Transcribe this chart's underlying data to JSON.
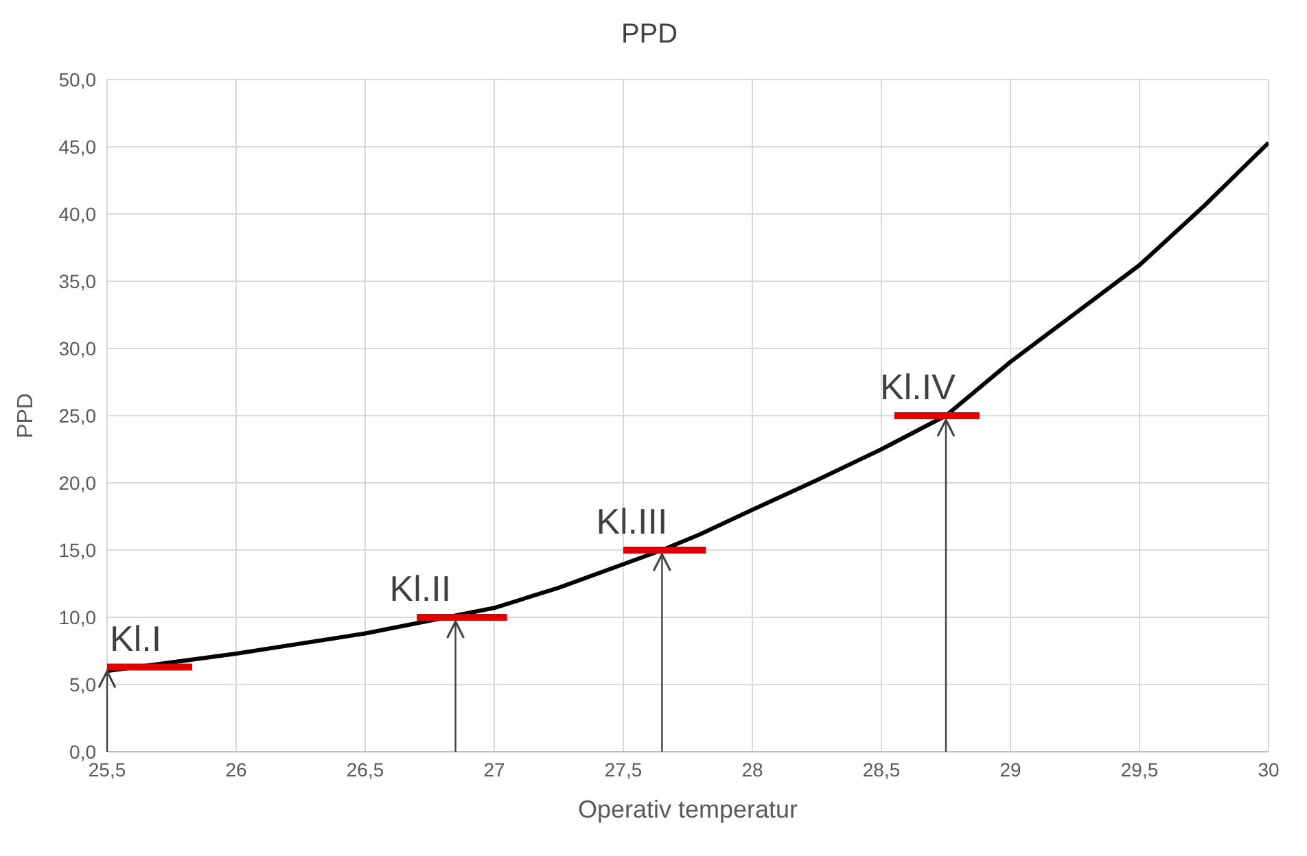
{
  "chart_data": {
    "type": "line",
    "title": "PPD",
    "xlabel": "Operativ temperatur",
    "ylabel": "PPD",
    "xlim": [
      25.5,
      30
    ],
    "xticks": [
      {
        "value": 25.5,
        "label": "25,5"
      },
      26,
      {
        "value": 26.5,
        "label": "26,5"
      },
      27,
      {
        "value": 27.5,
        "label": "27,5"
      },
      28,
      {
        "value": 28.5,
        "label": "28,5"
      },
      29,
      {
        "value": 29.5,
        "label": "29,5"
      },
      30
    ],
    "ylim": [
      0,
      50
    ],
    "yticks": [
      {
        "value": 0,
        "label": "0,0"
      },
      {
        "value": 5,
        "label": "5,0"
      },
      {
        "value": 10,
        "label": "10,0"
      },
      {
        "value": 15,
        "label": "15,0"
      },
      {
        "value": 20,
        "label": "20,0"
      },
      {
        "value": 25,
        "label": "25,0"
      },
      {
        "value": 30,
        "label": "30,0"
      },
      {
        "value": 35,
        "label": "35,0"
      },
      {
        "value": 40,
        "label": "40,0"
      },
      {
        "value": 45,
        "label": "45,0"
      },
      {
        "value": 50,
        "label": "50,0"
      }
    ],
    "grid": true,
    "marker": "none",
    "line_style": "solid",
    "series": [
      {
        "color": "#000000",
        "x": [
          25.5,
          26,
          26.5,
          27,
          27.25,
          27.65,
          27.8,
          28,
          28.25,
          28.5,
          28.75,
          29,
          29.25,
          29.5,
          29.75,
          30
        ],
        "values": [
          6.0,
          7.3,
          8.8,
          10.7,
          12.2,
          15.0,
          16.2,
          18.0,
          20.2,
          22.5,
          25.0,
          29.0,
          32.6,
          36.2,
          40.6,
          45.3
        ]
      },
      {
        "color": "#e00000",
        "x": [
          25.5,
          25.83
        ],
        "values": [
          6.3,
          6.3
        ]
      },
      {
        "color": "#e00000",
        "x": [
          26.7,
          27.05
        ],
        "values": [
          10,
          10
        ]
      },
      {
        "color": "#e00000",
        "x": [
          27.5,
          27.82
        ],
        "values": [
          15,
          15
        ]
      },
      {
        "color": "#e00000",
        "x": [
          28.55,
          28.88
        ],
        "values": [
          25,
          25
        ]
      }
    ],
    "annotations": [
      {
        "text": "Kl.I",
        "x": 25.5,
        "y": 6.3
      },
      {
        "text": "Kl.II",
        "x": 26.85,
        "y": 10
      },
      {
        "text": "Kl.III",
        "x": 27.65,
        "y": 15
      },
      {
        "text": "Kl.IV",
        "x": 28.75,
        "y": 25
      }
    ]
  }
}
